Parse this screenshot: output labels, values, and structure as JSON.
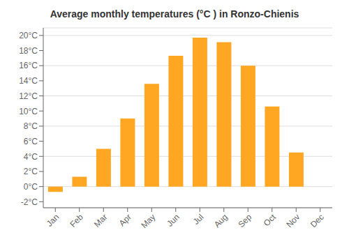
{
  "chart_data": {
    "type": "bar",
    "title": "Average monthly temperatures (°C ) in Ronzo-Chienis",
    "categories": [
      "Jan",
      "Feb",
      "Mar",
      "Apr",
      "May",
      "Jun",
      "Jul",
      "Aug",
      "Sep",
      "Oct",
      "Nov",
      "Dec"
    ],
    "values": [
      -0.7,
      1.3,
      5.0,
      9.0,
      13.6,
      17.3,
      19.7,
      19.1,
      16.0,
      10.6,
      4.5,
      0.0
    ],
    "color": "#FFA722",
    "ylim": [
      -2.8,
      21.0
    ],
    "yticks": [
      {
        "value": -2,
        "label": "-2°C"
      },
      {
        "value": 0,
        "label": "0°C"
      },
      {
        "value": 2,
        "label": "2°C"
      },
      {
        "value": 4,
        "label": "4°C"
      },
      {
        "value": 6,
        "label": "6°C"
      },
      {
        "value": 8,
        "label": "8°C"
      },
      {
        "value": 10,
        "label": "10°C"
      },
      {
        "value": 12,
        "label": "12°C"
      },
      {
        "value": 14,
        "label": "14°C"
      },
      {
        "value": 16,
        "label": "16°C"
      },
      {
        "value": 18,
        "label": "18°C"
      },
      {
        "value": 20,
        "label": "20°C"
      }
    ],
    "grid": true
  }
}
